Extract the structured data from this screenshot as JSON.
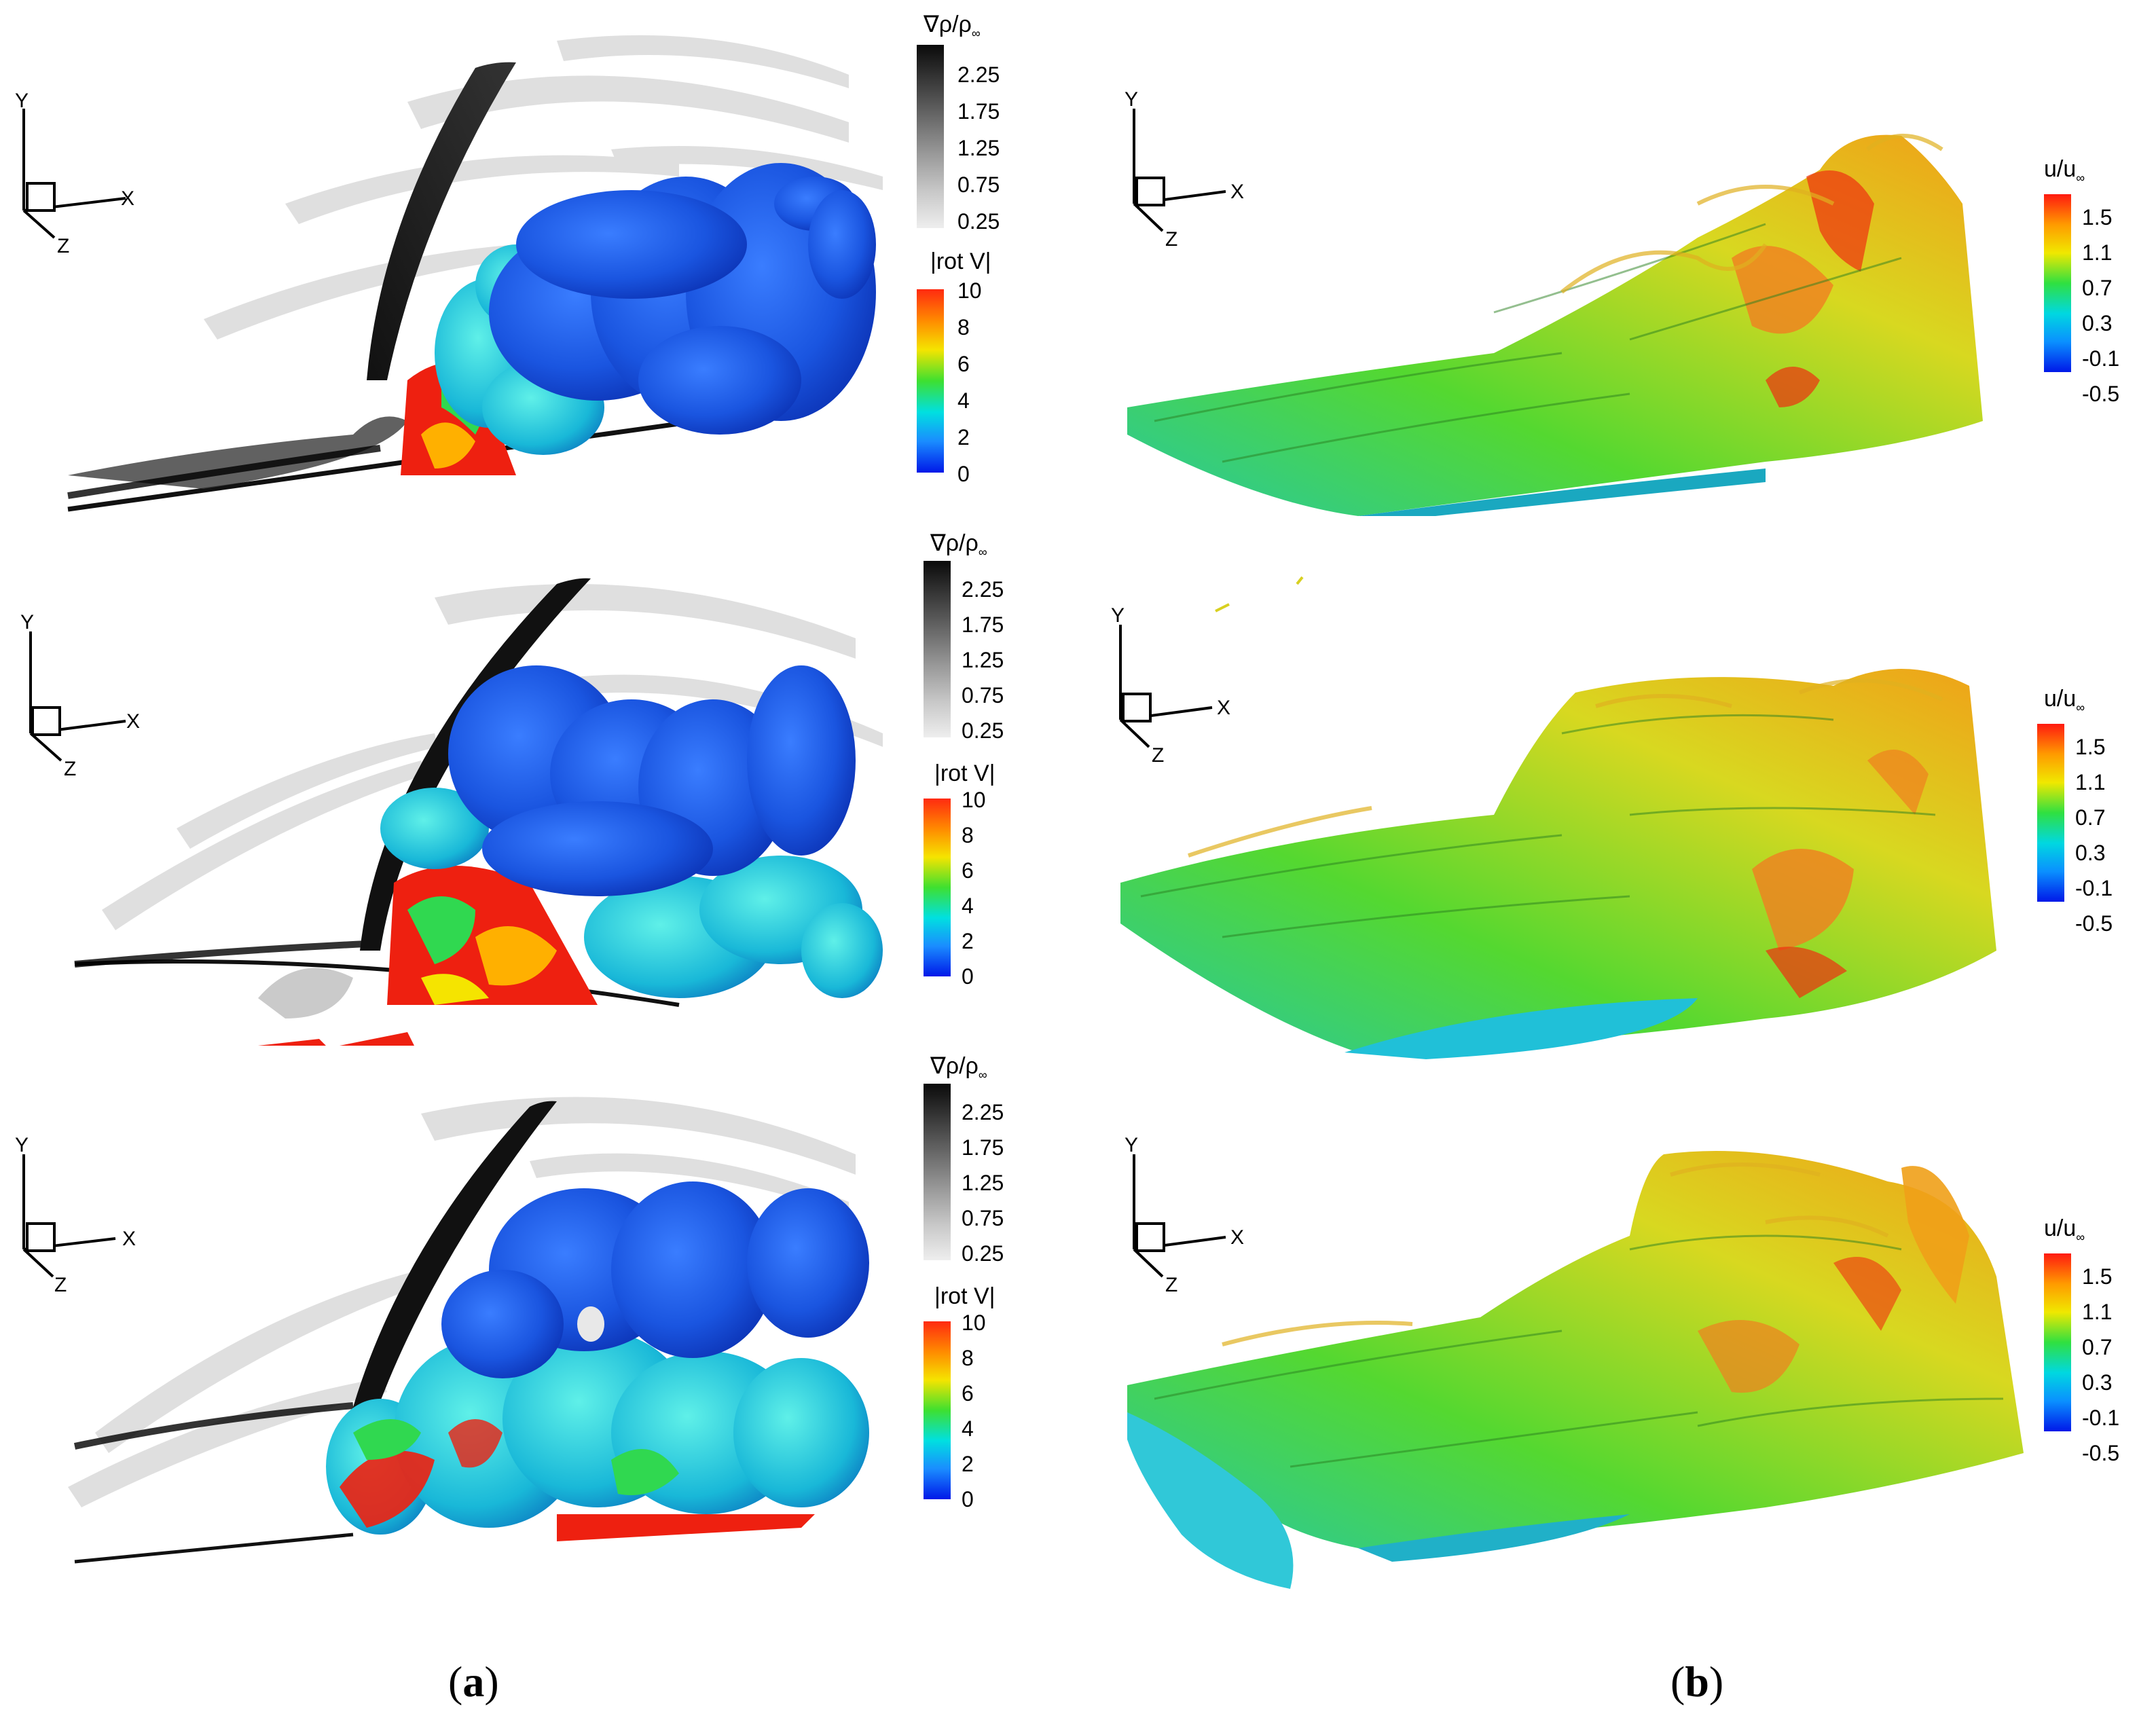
{
  "figure": {
    "captions": {
      "a": {
        "open": "(",
        "letter": "a",
        "close": ")"
      },
      "b": {
        "open": "(",
        "letter": "b",
        "close": ")"
      }
    },
    "axes": {
      "y": "Y",
      "x": "X",
      "z": "Z"
    },
    "legends": {
      "density_gradient": {
        "title_main": "∇ρ/ρ",
        "title_sub": "∞",
        "ticks": [
          "2.25",
          "1.75",
          "1.25",
          "0.75",
          "0.25"
        ],
        "colors": [
          "#0a0a0a",
          "#3a3a3a",
          "#6a6a6a",
          "#9a9a9a",
          "#c8c8c8",
          "#eeeeee"
        ]
      },
      "vorticity": {
        "title": "|rot V|",
        "ticks": [
          "10",
          "8",
          "6",
          "4",
          "2",
          "0"
        ],
        "colors": [
          "#ff2a10",
          "#ff8a00",
          "#f5e400",
          "#3ee030",
          "#00e0e0",
          "#1a8cff",
          "#0018e8"
        ]
      },
      "velocity": {
        "title_main": "u/u",
        "title_sub": "∞",
        "ticks": [
          "1.5",
          "1.1",
          "0.7",
          "0.3",
          "-0.1",
          "-0.5"
        ],
        "colors": [
          "#ff1a10",
          "#ff9a00",
          "#f0e800",
          "#30e040",
          "#00d8e0",
          "#0a90ff",
          "#0018e8"
        ]
      }
    }
  }
}
